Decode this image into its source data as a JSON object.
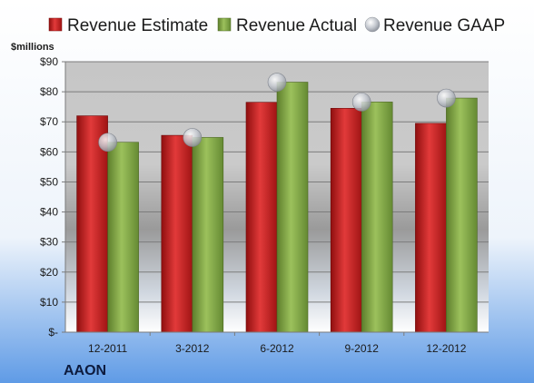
{
  "chart_data": {
    "type": "bar",
    "title": "",
    "ticker": "AAON",
    "unit_label": "$millions",
    "categories": [
      "12-2011",
      "3-2012",
      "6-2012",
      "9-2012",
      "12-2012"
    ],
    "series": [
      {
        "name": "Revenue Estimate",
        "kind": "bar",
        "color": "#cc1f1f",
        "values": [
          72,
          65.5,
          76.5,
          74.5,
          69.5
        ]
      },
      {
        "name": "Revenue Actual",
        "kind": "bar",
        "color": "#7fa346",
        "values": [
          63.2,
          64.8,
          83.2,
          76.6,
          77.9
        ]
      },
      {
        "name": "Revenue GAAP",
        "kind": "marker",
        "color": "#b8bcc4",
        "values": [
          63.2,
          64.8,
          83.2,
          76.6,
          77.9
        ]
      }
    ],
    "y_ticks": [
      "$-",
      "$10",
      "$20",
      "$30",
      "$40",
      "$50",
      "$60",
      "$70",
      "$80",
      "$90"
    ],
    "ylim": [
      0,
      90
    ],
    "grid": true,
    "legend_position": "top"
  }
}
